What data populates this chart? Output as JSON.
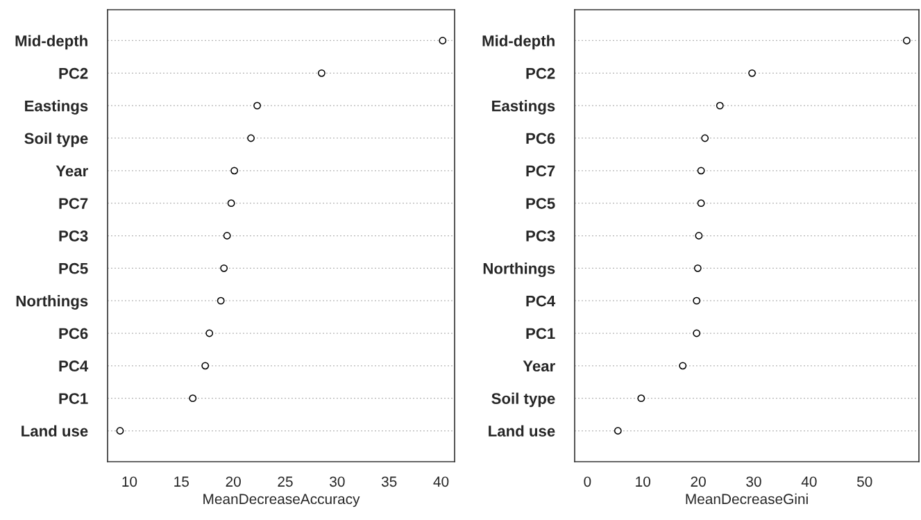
{
  "chart_data": [
    {
      "type": "scatter",
      "xlabel": "MeanDecreaseAccuracy",
      "categories": [
        "Mid-depth",
        "PC2",
        "Eastings",
        "Soil type",
        "Year",
        "PC7",
        "PC3",
        "PC5",
        "Northings",
        "PC6",
        "PC4",
        "PC1",
        "Land use"
      ],
      "series": [
        {
          "color": "#000000",
          "values": [
            40.15,
            28.5,
            22.3,
            21.7,
            20.1,
            19.8,
            19.4,
            19.1,
            18.8,
            17.7,
            17.3,
            16.1,
            9.1
          ]
        }
      ],
      "orientation": "horizontal",
      "xlim": [
        7.9,
        41.3
      ],
      "xticks": [
        10,
        15,
        20,
        25,
        30,
        35,
        40
      ],
      "grid": "y",
      "marker": "circle"
    },
    {
      "type": "scatter",
      "xlabel": "MeanDecreaseGini",
      "categories": [
        "Mid-depth",
        "PC2",
        "Eastings",
        "PC6",
        "PC7",
        "PC5",
        "PC3",
        "Northings",
        "PC4",
        "PC1",
        "Year",
        "Soil type",
        "Land use"
      ],
      "series": [
        {
          "color": "#000000",
          "values": [
            57.6,
            29.7,
            23.9,
            21.2,
            20.5,
            20.5,
            20.1,
            19.9,
            19.7,
            19.7,
            17.2,
            9.7,
            5.5
          ]
        }
      ],
      "orientation": "horizontal",
      "xlim": [
        -2.3,
        59.8
      ],
      "xticks": [
        0,
        10,
        20,
        30,
        40,
        50
      ],
      "grid": "y",
      "marker": "circle"
    }
  ]
}
